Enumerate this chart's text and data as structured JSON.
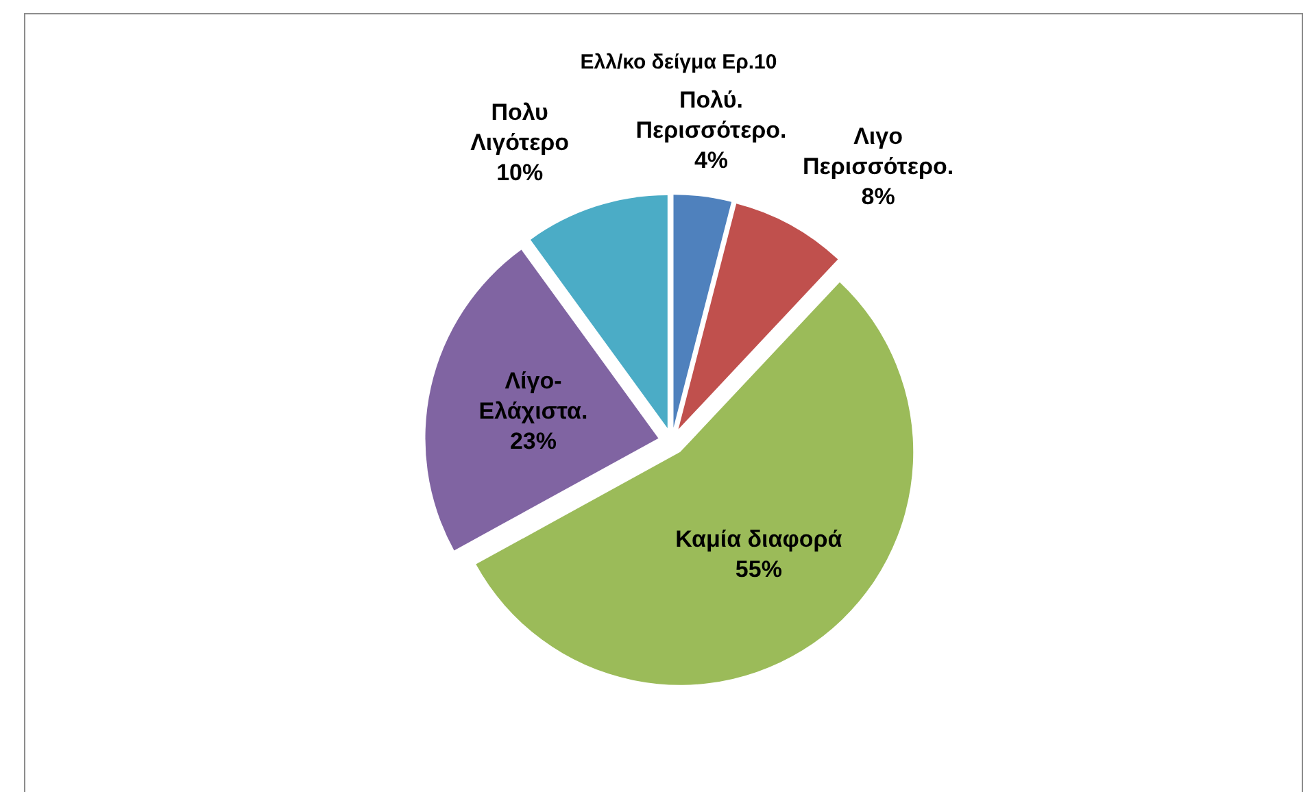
{
  "chart_data": {
    "type": "pie",
    "title": "Ελλ/κο δείγμα Ερ.10",
    "categories": [
      "Πολύ. Περισσότερο.",
      "Λιγο Περισσότερο.",
      "Καμία διαφορά",
      "Λίγο-Ελάχιστα.",
      "Πολυ Λιγότερο"
    ],
    "values": [
      4,
      8,
      55,
      23,
      10
    ],
    "colors": [
      "#4f81bd",
      "#c0504d",
      "#9bbb59",
      "#8064a2",
      "#4bacc6"
    ],
    "value_labels": [
      "4%",
      "8%",
      "55%",
      "23%",
      "10%"
    ]
  }
}
